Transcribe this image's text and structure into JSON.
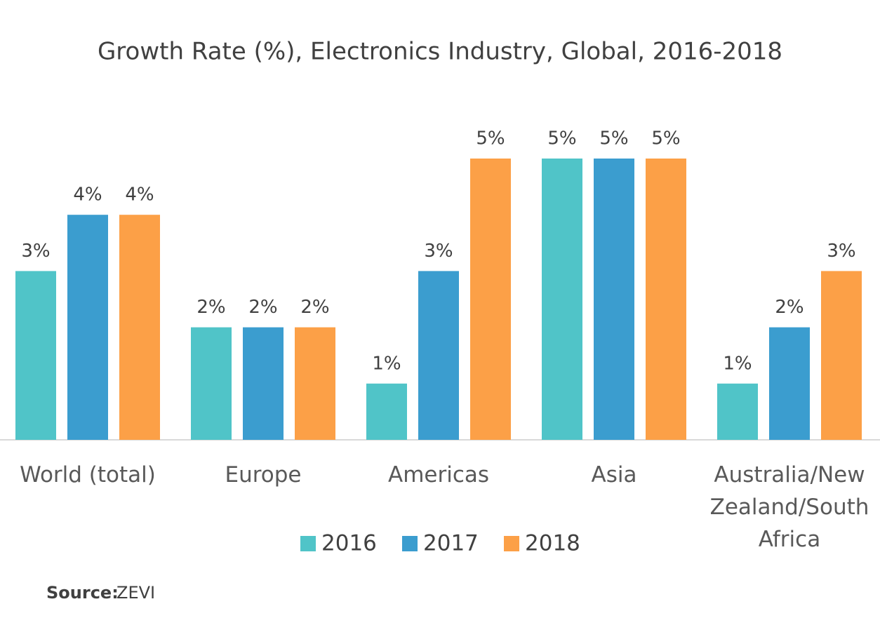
{
  "chart_data": {
    "type": "bar",
    "title": "Growth Rate (%), Electronics Industry, Global, 2016-2018",
    "categories": [
      "World (total)",
      "Europe",
      "Americas",
      "Asia",
      "Australia/New Zealand/South Africa"
    ],
    "series": [
      {
        "name": "2016",
        "color": "#50c4c8",
        "values": [
          3,
          2,
          1,
          5,
          1
        ],
        "value_labels": [
          "3%",
          "2%",
          "1%",
          "5%",
          "1%"
        ]
      },
      {
        "name": "2017",
        "color": "#3b9dcf",
        "values": [
          4,
          2,
          3,
          5,
          2
        ],
        "value_labels": [
          "4%",
          "2%",
          "3%",
          "5%",
          "2%"
        ]
      },
      {
        "name": "2018",
        "color": "#fca047",
        "values": [
          4,
          2,
          5,
          5,
          3
        ],
        "value_labels": [
          "4%",
          "2%",
          "5%",
          "5%",
          "3%"
        ]
      }
    ],
    "legend": "bottom",
    "source_label": "Source:",
    "source": "ZEVI"
  }
}
